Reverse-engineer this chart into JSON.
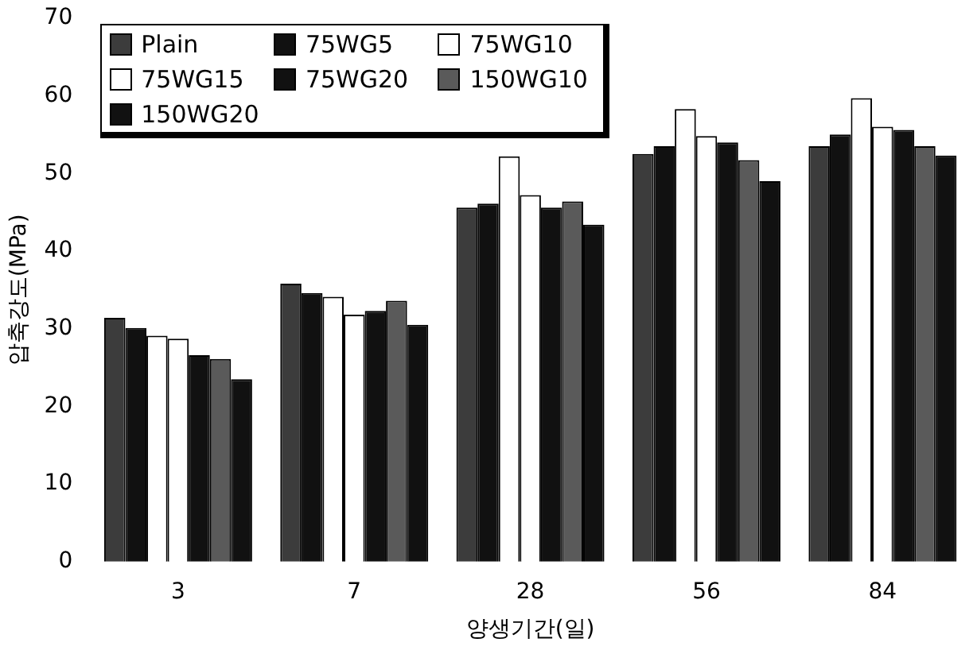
{
  "chart_data": {
    "type": "bar",
    "xlabel": "양생기간(일)",
    "ylabel": "압축강도(MPa)",
    "categories": [
      "3",
      "7",
      "28",
      "56",
      "84"
    ],
    "series": [
      {
        "name": "Plain",
        "color": "#3c3c3c",
        "values": [
          31.4,
          35.8,
          45.6,
          52.5,
          53.5
        ]
      },
      {
        "name": "75WG5",
        "color": "#111111",
        "values": [
          30.1,
          34.6,
          46.1,
          53.5,
          55.0
        ]
      },
      {
        "name": "75WG10",
        "color": "#ffffff",
        "values": [
          29.1,
          34.1,
          52.2,
          58.3,
          59.7
        ]
      },
      {
        "name": "75WG15",
        "color": "#ffffff",
        "values": [
          28.7,
          31.8,
          47.2,
          54.8,
          56.0
        ]
      },
      {
        "name": "75WG20",
        "color": "#111111",
        "values": [
          26.6,
          32.3,
          45.6,
          54.0,
          55.6
        ]
      },
      {
        "name": "150WG10",
        "color": "#5a5a5a",
        "values": [
          26.1,
          33.6,
          46.4,
          51.7,
          53.5
        ]
      },
      {
        "name": "150WG20",
        "color": "#111111",
        "values": [
          23.5,
          30.5,
          43.4,
          49.0,
          52.3
        ]
      }
    ],
    "ylim": [
      0,
      70
    ],
    "yticks": [
      0,
      10,
      20,
      30,
      40,
      50,
      60,
      70
    ],
    "grid": false,
    "legend": "top left"
  }
}
